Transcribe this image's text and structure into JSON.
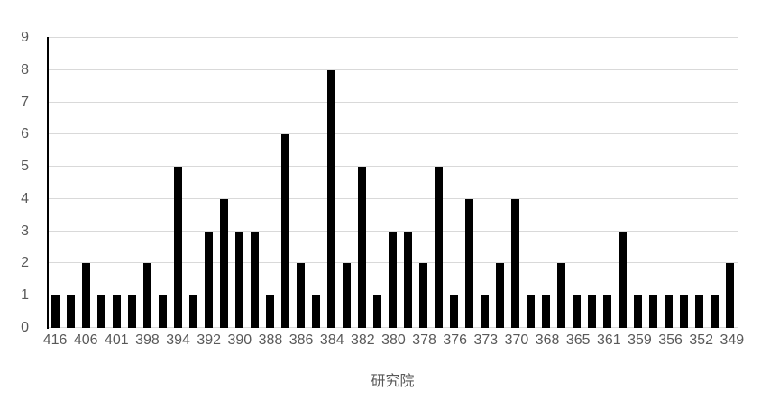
{
  "chart_data": {
    "type": "bar",
    "title": "",
    "xlabel": "研究院",
    "ylabel": "",
    "ylim": [
      0,
      9
    ],
    "grid": true,
    "legend": false,
    "y_tick_labels": [
      "0",
      "1",
      "2",
      "3",
      "4",
      "5",
      "6",
      "7",
      "8",
      "9"
    ],
    "x_tick_labels": [
      "416",
      "406",
      "401",
      "398",
      "394",
      "392",
      "390",
      "388",
      "386",
      "384",
      "382",
      "380",
      "378",
      "376",
      "373",
      "370",
      "368",
      "365",
      "361",
      "359",
      "356",
      "352",
      "349"
    ],
    "x_tick_note": "labels appear under every other bar, starting with the first bar",
    "label_every": 2,
    "values": [
      1,
      1,
      2,
      1,
      1,
      1,
      2,
      1,
      5,
      1,
      3,
      4,
      3,
      3,
      1,
      6,
      2,
      1,
      8,
      2,
      5,
      1,
      3,
      3,
      2,
      5,
      1,
      4,
      1,
      2,
      4,
      1,
      1,
      2,
      1,
      1,
      1,
      3,
      1,
      1,
      1,
      1,
      1,
      1,
      2
    ],
    "colors": {
      "bar": "#000000",
      "gridline": "#d9d9d9",
      "axis_line": "#000000",
      "text": "#595959",
      "background": "#ffffff"
    }
  }
}
